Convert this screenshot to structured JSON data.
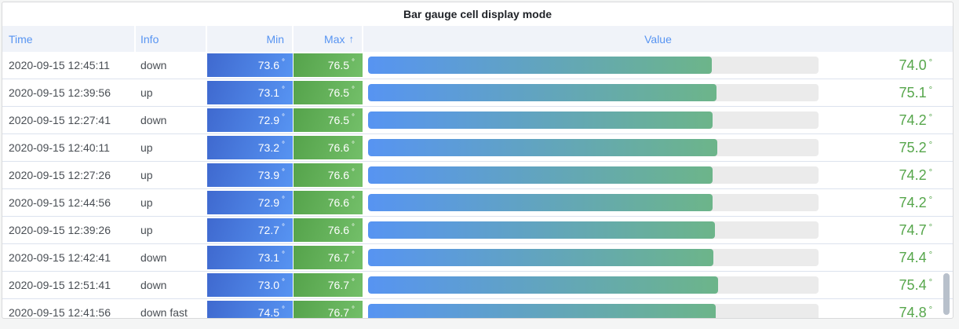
{
  "panel": {
    "title": "Bar gauge cell display mode"
  },
  "table": {
    "unit_suffix": "°",
    "columns": [
      {
        "key": "time",
        "label": "Time",
        "align": "left"
      },
      {
        "key": "info",
        "label": "Info",
        "align": "left"
      },
      {
        "key": "min",
        "label": "Min",
        "align": "right"
      },
      {
        "key": "max",
        "label": "Max",
        "align": "right",
        "sort": "ascending",
        "sort_indicator": "↑"
      },
      {
        "key": "value",
        "label": "Value",
        "align": "center"
      }
    ],
    "rows": [
      {
        "time": "2020-09-15 12:45:11",
        "info": "down",
        "min": "73.6",
        "max": "76.5",
        "value": "74.0"
      },
      {
        "time": "2020-09-15 12:39:56",
        "info": "up",
        "min": "73.1",
        "max": "76.5",
        "value": "75.1"
      },
      {
        "time": "2020-09-15 12:27:41",
        "info": "down",
        "min": "72.9",
        "max": "76.5",
        "value": "74.2"
      },
      {
        "time": "2020-09-15 12:40:11",
        "info": "up",
        "min": "73.2",
        "max": "76.6",
        "value": "75.2"
      },
      {
        "time": "2020-09-15 12:27:26",
        "info": "up",
        "min": "73.9",
        "max": "76.6",
        "value": "74.2"
      },
      {
        "time": "2020-09-15 12:44:56",
        "info": "up",
        "min": "72.9",
        "max": "76.6",
        "value": "74.2"
      },
      {
        "time": "2020-09-15 12:39:26",
        "info": "up",
        "min": "72.7",
        "max": "76.6",
        "value": "74.7"
      },
      {
        "time": "2020-09-15 12:42:41",
        "info": "down",
        "min": "73.1",
        "max": "76.7",
        "value": "74.4"
      },
      {
        "time": "2020-09-15 12:51:41",
        "info": "down",
        "min": "73.0",
        "max": "76.7",
        "value": "75.4"
      },
      {
        "time": "2020-09-15 12:41:56",
        "info": "down fast",
        "min": "74.5",
        "max": "76.7",
        "value": "74.8"
      }
    ]
  },
  "colors": {
    "accent_blue": "#5794F2",
    "accent_green": "#73BF69",
    "value_text_green": "#56A64B",
    "min_cell_gradient": [
      "#3F69CF",
      "#5794F2"
    ],
    "max_cell_gradient": [
      "#55A34B",
      "#73BF69"
    ],
    "bar_track": "#EBEBEB",
    "header_text": "#5794F2",
    "header_band": "#F0F3F9",
    "panel_border": "#D8D9DA",
    "scrollbar_thumb": "#B8C0CB"
  }
}
